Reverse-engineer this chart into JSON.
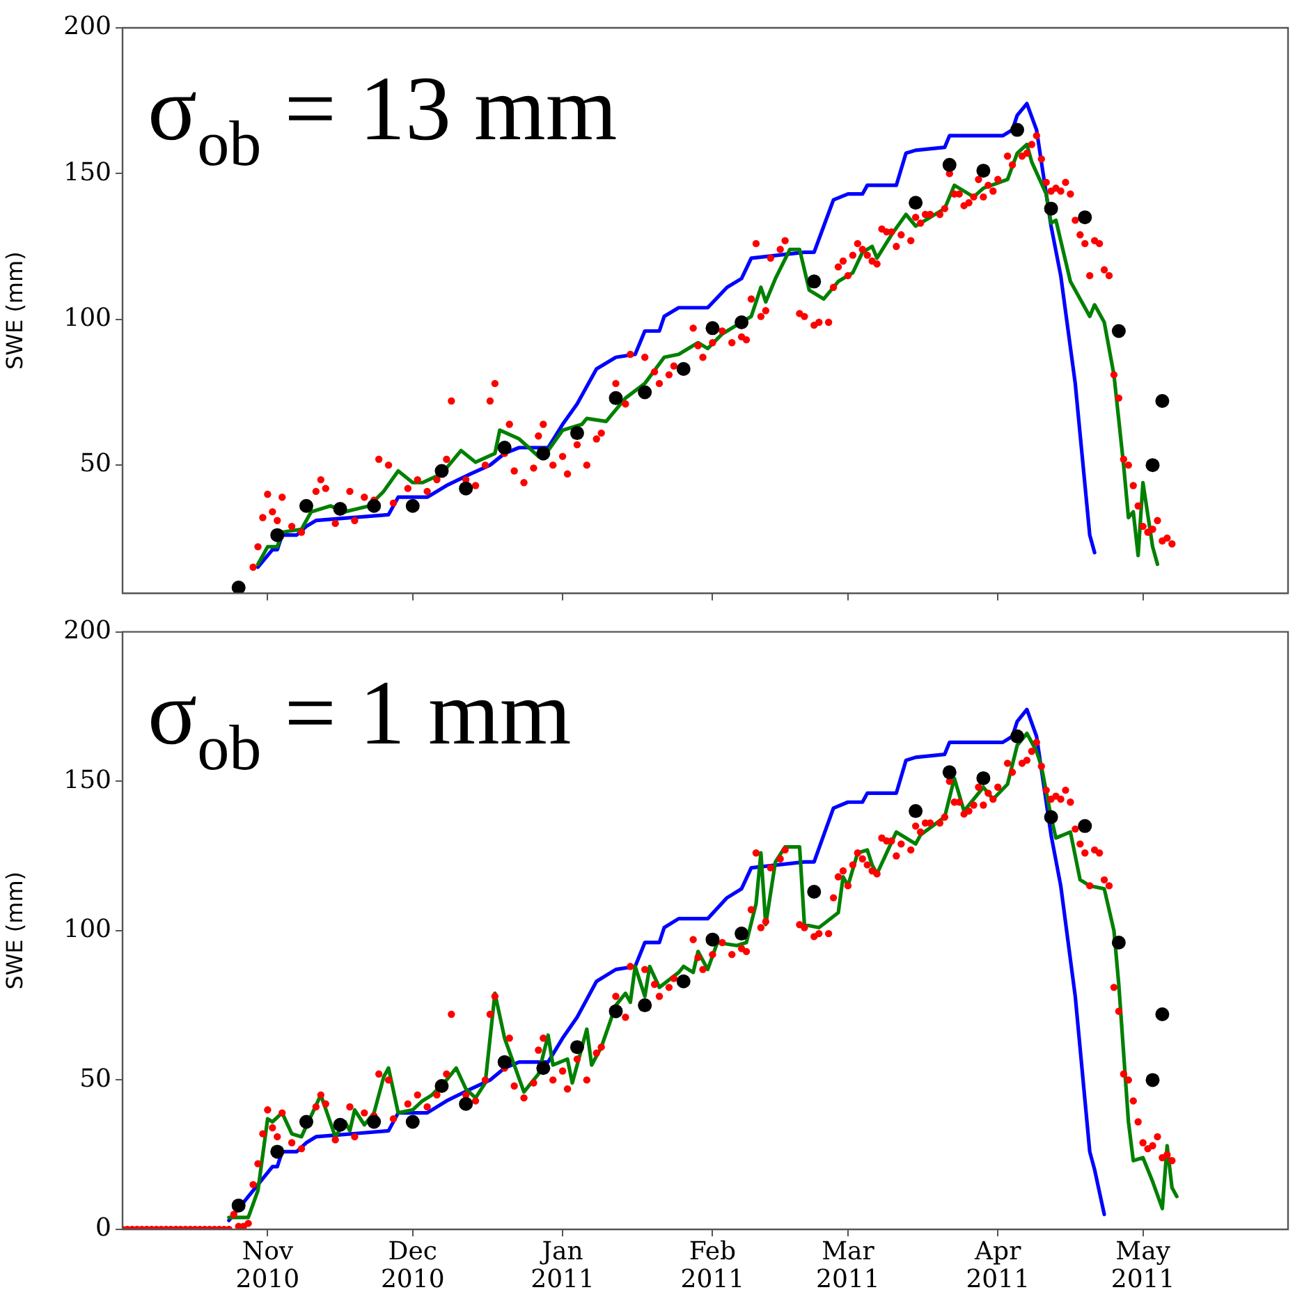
{
  "chart_data": [
    {
      "type": "line",
      "annotations": [
        "σ$_{ob}$ = 13 mm"
      ],
      "ylabel": "SWE (mm)",
      "xlim": [
        "2010-10-02",
        "2011-05-31"
      ],
      "ylim": [
        6,
        200
      ],
      "xticks": [
        {
          "value": "2010-11-01",
          "label": null
        },
        {
          "value": "2010-12-01",
          "label": null
        },
        {
          "value": "2011-01-01",
          "label": null
        },
        {
          "value": "2011-02-01",
          "label": null
        },
        {
          "value": "2011-03-01",
          "label": null
        },
        {
          "value": "2011-04-01",
          "label": null
        },
        {
          "value": "2011-05-01",
          "label": null
        }
      ],
      "yticks": [
        50,
        100,
        150,
        200
      ],
      "tick_labels": "y",
      "grid": false,
      "legend": false,
      "series": [
        {
          "type": "line",
          "color": "#0000ff",
          "x": [
            "2010-10-30",
            "2010-11-02",
            "2010-11-03",
            "2010-11-04",
            "2010-11-07",
            "2010-11-09",
            "2010-11-11",
            "2010-11-26",
            "2010-11-28",
            "2010-12-04",
            "2010-12-08",
            "2010-12-13",
            "2010-12-17",
            "2010-12-20",
            "2010-12-23",
            "2010-12-29",
            "2011-01-01",
            "2011-01-04",
            "2011-01-08",
            "2011-01-12",
            "2011-01-16",
            "2011-01-18",
            "2011-01-21",
            "2011-01-22",
            "2011-01-25",
            "2011-01-31",
            "2011-02-04",
            "2011-02-07",
            "2011-02-09",
            "2011-02-20",
            "2011-02-22",
            "2011-02-24",
            "2011-02-26",
            "2011-03-01",
            "2011-03-04",
            "2011-03-05",
            "2011-03-11",
            "2011-03-13",
            "2011-03-15",
            "2011-03-21",
            "2011-03-22",
            "2011-04-02",
            "2011-04-04",
            "2011-04-05",
            "2011-04-07",
            "2011-04-09",
            "2011-04-12",
            "2011-04-14",
            "2011-04-17",
            "2011-04-20",
            "2011-04-21"
          ],
          "values": [
            15,
            21,
            21,
            26,
            26,
            29,
            31,
            33,
            39,
            39,
            43,
            47,
            50,
            54,
            56,
            56,
            64,
            71,
            83,
            87,
            88,
            96,
            96,
            101,
            104,
            104,
            111,
            114,
            121,
            123,
            123,
            132,
            141,
            143,
            143,
            146,
            146,
            157,
            158,
            159,
            163,
            163,
            165,
            170,
            174,
            165,
            132,
            115,
            78,
            26,
            20
          ]
        },
        {
          "type": "line",
          "color": "#008000",
          "x": [
            "2010-10-30",
            "2010-11-01",
            "2010-11-03",
            "2010-11-04",
            "2010-11-08",
            "2010-11-10",
            "2010-11-14",
            "2010-11-17",
            "2010-11-22",
            "2010-11-25",
            "2010-11-28",
            "2010-12-01",
            "2010-12-03",
            "2010-12-07",
            "2010-12-11",
            "2010-12-14",
            "2010-12-18",
            "2010-12-19",
            "2010-12-23",
            "2010-12-27",
            "2010-12-29",
            "2011-01-01",
            "2011-01-05",
            "2011-01-06",
            "2011-01-10",
            "2011-01-14",
            "2011-01-18",
            "2011-01-22",
            "2011-01-25",
            "2011-01-29",
            "2011-01-31",
            "2011-02-03",
            "2011-02-05",
            "2011-02-09",
            "2011-02-11",
            "2011-02-12",
            "2011-02-14",
            "2011-02-17",
            "2011-02-19",
            "2011-02-21",
            "2011-02-24",
            "2011-02-27",
            "2011-03-02",
            "2011-03-04",
            "2011-03-06",
            "2011-03-07",
            "2011-03-10",
            "2011-03-13",
            "2011-03-15",
            "2011-03-21",
            "2011-03-23",
            "2011-03-27",
            "2011-03-29",
            "2011-04-03",
            "2011-04-05",
            "2011-04-07",
            "2011-04-08",
            "2011-04-11",
            "2011-04-12",
            "2011-04-13",
            "2011-04-16",
            "2011-04-20",
            "2011-04-21",
            "2011-04-23",
            "2011-04-25",
            "2011-04-27",
            "2011-04-28",
            "2011-04-29",
            "2011-04-30",
            "2011-05-01",
            "2011-05-03",
            "2011-05-04"
          ],
          "values": [
            16,
            22,
            22,
            27,
            28,
            34,
            36,
            34,
            36,
            41,
            48,
            44,
            44,
            47,
            55,
            51,
            54,
            62,
            59,
            53,
            55,
            62,
            64,
            66,
            65,
            73,
            78,
            87,
            88,
            92,
            90,
            95,
            97,
            101,
            111,
            106,
            114,
            124,
            124,
            110,
            107,
            113,
            116,
            123,
            125,
            121,
            129,
            136,
            132,
            138,
            146,
            142,
            145,
            148,
            157,
            160,
            154,
            143,
            133,
            134,
            113,
            101,
            105,
            99,
            81,
            50,
            32,
            34,
            19,
            44,
            22,
            16
          ]
        },
        {
          "type": "scatter",
          "marker": "circle",
          "color": "#ff0000",
          "x": [
            "2010-10-29",
            "2010-10-30",
            "2010-10-31",
            "2010-11-01",
            "2010-11-02",
            "2010-11-03",
            "2010-11-04",
            "2010-11-06",
            "2010-11-08",
            "2010-11-11",
            "2010-11-12",
            "2010-11-13",
            "2010-11-15",
            "2010-11-18",
            "2010-11-19",
            "2010-11-21",
            "2010-11-23",
            "2010-11-24",
            "2010-11-26",
            "2010-11-27",
            "2010-11-30",
            "2010-12-02",
            "2010-12-04",
            "2010-12-06",
            "2010-12-08",
            "2010-12-09",
            "2010-12-12",
            "2010-12-14",
            "2010-12-16",
            "2010-12-17",
            "2010-12-18",
            "2010-12-20",
            "2010-12-21",
            "2010-12-22",
            "2010-12-24",
            "2010-12-26",
            "2010-12-27",
            "2010-12-28",
            "2010-12-30",
            "2011-01-01",
            "2011-01-02",
            "2011-01-04",
            "2011-01-06",
            "2011-01-08",
            "2011-01-09",
            "2011-01-12",
            "2011-01-14",
            "2011-01-15",
            "2011-01-18",
            "2011-01-20",
            "2011-01-21",
            "2011-01-23",
            "2011-01-24",
            "2011-01-28",
            "2011-01-29",
            "2011-01-30",
            "2011-02-01",
            "2011-02-03",
            "2011-02-05",
            "2011-02-07",
            "2011-02-08",
            "2011-02-09",
            "2011-02-10",
            "2011-02-11",
            "2011-02-12",
            "2011-02-13",
            "2011-02-15",
            "2011-02-16",
            "2011-02-19",
            "2011-02-20",
            "2011-02-22",
            "2011-02-23",
            "2011-02-25",
            "2011-02-26",
            "2011-02-27",
            "2011-02-28",
            "2011-03-01",
            "2011-03-02",
            "2011-03-03",
            "2011-03-04",
            "2011-03-05",
            "2011-03-06",
            "2011-03-07",
            "2011-03-08",
            "2011-03-09",
            "2011-03-10",
            "2011-03-11",
            "2011-03-12",
            "2011-03-14",
            "2011-03-15",
            "2011-03-16",
            "2011-03-17",
            "2011-03-18",
            "2011-03-20",
            "2011-03-21",
            "2011-03-22",
            "2011-03-23",
            "2011-03-24",
            "2011-03-25",
            "2011-03-26",
            "2011-03-27",
            "2011-03-28",
            "2011-03-29",
            "2011-03-30",
            "2011-03-31",
            "2011-04-01",
            "2011-04-03",
            "2011-04-04",
            "2011-04-06",
            "2011-04-07",
            "2011-04-08",
            "2011-04-09",
            "2011-04-10",
            "2011-04-11",
            "2011-04-12",
            "2011-04-13",
            "2011-04-14",
            "2011-04-15",
            "2011-04-16",
            "2011-04-17",
            "2011-04-18",
            "2011-04-19",
            "2011-04-20",
            "2011-04-21",
            "2011-04-22",
            "2011-04-23",
            "2011-04-24",
            "2011-04-25",
            "2011-04-26",
            "2011-04-27",
            "2011-04-28",
            "2011-04-29",
            "2011-04-30",
            "2011-05-01",
            "2011-05-02",
            "2011-05-03",
            "2011-05-04",
            "2011-05-05",
            "2011-05-06",
            "2011-05-07"
          ],
          "values": [
            15,
            22,
            32,
            40,
            34,
            31,
            39,
            29,
            27,
            41,
            45,
            42,
            30,
            41,
            31,
            39,
            38,
            52,
            50,
            37,
            42,
            45,
            41,
            45,
            52,
            72,
            45,
            43,
            50,
            72,
            78,
            54,
            64,
            48,
            44,
            49,
            60,
            64,
            50,
            53,
            47,
            57,
            50,
            59,
            61,
            78,
            71,
            88,
            87,
            82,
            78,
            81,
            84,
            97,
            91,
            87,
            92,
            96,
            92,
            94,
            93,
            107,
            126,
            101,
            103,
            121,
            124,
            127,
            102,
            101,
            98,
            99,
            99,
            111,
            118,
            120,
            115,
            122,
            126,
            124,
            122,
            120,
            119,
            131,
            130,
            130,
            125,
            129,
            127,
            135,
            133,
            136,
            136,
            136,
            138,
            150,
            143,
            143,
            139,
            140,
            142,
            148,
            142,
            146,
            144,
            148,
            156,
            153,
            156,
            157,
            160,
            163,
            155,
            147,
            144,
            145,
            144,
            147,
            143,
            134,
            129,
            126,
            115,
            127,
            126,
            117,
            115,
            81,
            73,
            52,
            50,
            43,
            36,
            29,
            27,
            28,
            31,
            24,
            25,
            23
          ]
        },
        {
          "type": "scatter",
          "marker": "circle",
          "color": "#000000",
          "x": [
            "2010-10-26",
            "2010-11-03",
            "2010-11-09",
            "2010-11-16",
            "2010-11-23",
            "2010-12-01",
            "2010-12-07",
            "2010-12-12",
            "2010-12-20",
            "2010-12-28",
            "2011-01-04",
            "2011-01-12",
            "2011-01-18",
            "2011-01-26",
            "2011-02-01",
            "2011-02-07",
            "2011-02-22",
            "2011-03-15",
            "2011-03-22",
            "2011-03-29",
            "2011-04-05",
            "2011-04-12",
            "2011-04-19",
            "2011-04-26",
            "2011-05-03",
            "2011-05-05"
          ],
          "values": [
            8,
            26,
            36,
            35,
            36,
            36,
            48,
            42,
            56,
            54,
            61,
            73,
            75,
            83,
            97,
            99,
            113,
            140,
            153,
            151,
            165,
            138,
            135,
            96,
            50,
            72
          ]
        }
      ]
    },
    {
      "type": "line",
      "annotations": [
        "σ$_{ob}$ = 1 mm"
      ],
      "ylabel": "SWE (mm)",
      "xlim": [
        "2010-10-02",
        "2011-05-31"
      ],
      "ylim": [
        0,
        200
      ],
      "xticks": [
        {
          "value": "2010-11-01",
          "label": "Nov\n2010"
        },
        {
          "value": "2010-12-01",
          "label": "Dec\n2010"
        },
        {
          "value": "2011-01-01",
          "label": "Jan\n2011"
        },
        {
          "value": "2011-02-01",
          "label": "Feb\n2011"
        },
        {
          "value": "2011-03-01",
          "label": "Mar\n2011"
        },
        {
          "value": "2011-04-01",
          "label": "Apr\n2011"
        },
        {
          "value": "2011-05-01",
          "label": "May\n2011"
        }
      ],
      "yticks": [
        0,
        50,
        100,
        150,
        200
      ],
      "grid": false,
      "legend": false,
      "series": [
        {
          "type": "line",
          "color": "#0000ff",
          "x": [
            "2010-10-24",
            "2010-10-30",
            "2010-11-02",
            "2010-11-03",
            "2010-11-04",
            "2010-11-07",
            "2010-11-09",
            "2010-11-11",
            "2010-11-26",
            "2010-11-28",
            "2010-12-04",
            "2010-12-08",
            "2010-12-13",
            "2010-12-17",
            "2010-12-20",
            "2010-12-23",
            "2010-12-29",
            "2011-01-01",
            "2011-01-04",
            "2011-01-08",
            "2011-01-12",
            "2011-01-16",
            "2011-01-18",
            "2011-01-21",
            "2011-01-22",
            "2011-01-25",
            "2011-01-31",
            "2011-02-04",
            "2011-02-07",
            "2011-02-09",
            "2011-02-20",
            "2011-02-22",
            "2011-02-24",
            "2011-02-26",
            "2011-03-01",
            "2011-03-04",
            "2011-03-05",
            "2011-03-11",
            "2011-03-13",
            "2011-03-15",
            "2011-03-21",
            "2011-03-22",
            "2011-04-02",
            "2011-04-04",
            "2011-04-05",
            "2011-04-07",
            "2011-04-09",
            "2011-04-12",
            "2011-04-14",
            "2011-04-17",
            "2011-04-20",
            "2011-04-21",
            "2011-04-23"
          ],
          "values": [
            3,
            15,
            21,
            21,
            26,
            26,
            29,
            31,
            33,
            39,
            39,
            43,
            47,
            50,
            54,
            56,
            56,
            64,
            71,
            83,
            87,
            88,
            96,
            96,
            101,
            104,
            104,
            111,
            114,
            121,
            123,
            123,
            132,
            141,
            143,
            143,
            146,
            146,
            157,
            158,
            159,
            163,
            163,
            165,
            170,
            174,
            165,
            132,
            115,
            78,
            26,
            20,
            5
          ]
        },
        {
          "type": "line",
          "color": "#008000",
          "x": [
            "2010-10-24",
            "2010-10-28",
            "2010-10-30",
            "2010-11-01",
            "2010-11-02",
            "2010-11-04",
            "2010-11-06",
            "2010-11-08",
            "2010-11-12",
            "2010-11-15",
            "2010-11-17",
            "2010-11-18",
            "2010-11-19",
            "2010-11-21",
            "2010-11-23",
            "2010-11-25",
            "2010-11-26",
            "2010-11-28",
            "2010-12-01",
            "2010-12-03",
            "2010-12-05",
            "2010-12-08",
            "2010-12-10",
            "2010-12-12",
            "2010-12-14",
            "2010-12-16",
            "2010-12-18",
            "2010-12-20",
            "2010-12-22",
            "2010-12-24",
            "2010-12-27",
            "2010-12-29",
            "2010-12-30",
            "2011-01-02",
            "2011-01-03",
            "2011-01-06",
            "2011-01-07",
            "2011-01-09",
            "2011-01-12",
            "2011-01-14",
            "2011-01-15",
            "2011-01-16",
            "2011-01-18",
            "2011-01-19",
            "2011-01-21",
            "2011-01-25",
            "2011-01-26",
            "2011-01-28",
            "2011-01-29",
            "2011-01-31",
            "2011-02-02",
            "2011-02-06",
            "2011-02-08",
            "2011-02-10",
            "2011-02-11",
            "2011-02-12",
            "2011-02-14",
            "2011-02-16",
            "2011-02-19",
            "2011-02-20",
            "2011-02-23",
            "2011-02-27",
            "2011-02-28",
            "2011-03-01",
            "2011-03-03",
            "2011-03-05",
            "2011-03-06",
            "2011-03-07",
            "2011-03-09",
            "2011-03-11",
            "2011-03-15",
            "2011-03-16",
            "2011-03-21",
            "2011-03-23",
            "2011-03-25",
            "2011-03-29",
            "2011-03-31",
            "2011-04-03",
            "2011-04-05",
            "2011-04-07",
            "2011-04-09",
            "2011-04-10",
            "2011-04-12",
            "2011-04-13",
            "2011-04-16",
            "2011-04-18",
            "2011-04-20",
            "2011-04-23",
            "2011-04-25",
            "2011-04-26",
            "2011-04-28",
            "2011-04-29",
            "2011-05-01",
            "2011-05-03",
            "2011-05-05",
            "2011-05-06",
            "2011-05-07",
            "2011-05-08"
          ],
          "values": [
            4,
            4,
            13,
            37,
            36,
            39,
            32,
            31,
            45,
            31,
            36,
            33,
            40,
            35,
            39,
            51,
            54,
            39,
            40,
            43,
            45,
            50,
            54,
            47,
            44,
            49,
            79,
            64,
            55,
            46,
            52,
            65,
            55,
            57,
            49,
            67,
            55,
            61,
            75,
            79,
            76,
            88,
            78,
            88,
            81,
            86,
            88,
            86,
            93,
            87,
            96,
            95,
            96,
            109,
            126,
            102,
            123,
            128,
            128,
            102,
            101,
            106,
            118,
            115,
            126,
            127,
            122,
            119,
            126,
            133,
            129,
            132,
            138,
            151,
            140,
            148,
            144,
            149,
            162,
            166,
            160,
            155,
            138,
            131,
            133,
            117,
            115,
            114,
            100,
            82,
            36,
            23,
            24,
            16,
            7,
            28,
            14,
            11
          ]
        },
        {
          "type": "scatter",
          "marker": "circle",
          "color": "#ff0000",
          "x": [
            "2010-10-02",
            "2010-10-03",
            "2010-10-04",
            "2010-10-05",
            "2010-10-06",
            "2010-10-07",
            "2010-10-08",
            "2010-10-09",
            "2010-10-10",
            "2010-10-11",
            "2010-10-12",
            "2010-10-13",
            "2010-10-14",
            "2010-10-15",
            "2010-10-16",
            "2010-10-17",
            "2010-10-18",
            "2010-10-19",
            "2010-10-20",
            "2010-10-21",
            "2010-10-22",
            "2010-10-23",
            "2010-10-24",
            "2010-10-25",
            "2010-10-26",
            "2010-10-27",
            "2010-10-28",
            "2010-10-29",
            "2010-10-30",
            "2010-10-31",
            "2010-11-01",
            "2010-11-02",
            "2010-11-03",
            "2010-11-04",
            "2010-11-06",
            "2010-11-08",
            "2010-11-11",
            "2010-11-12",
            "2010-11-13",
            "2010-11-15",
            "2010-11-18",
            "2010-11-19",
            "2010-11-21",
            "2010-11-23",
            "2010-11-24",
            "2010-11-26",
            "2010-11-27",
            "2010-11-30",
            "2010-12-02",
            "2010-12-04",
            "2010-12-06",
            "2010-12-08",
            "2010-12-09",
            "2010-12-12",
            "2010-12-14",
            "2010-12-16",
            "2010-12-17",
            "2010-12-18",
            "2010-12-20",
            "2010-12-21",
            "2010-12-22",
            "2010-12-24",
            "2010-12-26",
            "2010-12-27",
            "2010-12-28",
            "2010-12-30",
            "2011-01-01",
            "2011-01-02",
            "2011-01-04",
            "2011-01-06",
            "2011-01-08",
            "2011-01-09",
            "2011-01-12",
            "2011-01-14",
            "2011-01-15",
            "2011-01-18",
            "2011-01-20",
            "2011-01-21",
            "2011-01-23",
            "2011-01-24",
            "2011-01-28",
            "2011-01-29",
            "2011-01-30",
            "2011-02-01",
            "2011-02-03",
            "2011-02-05",
            "2011-02-07",
            "2011-02-08",
            "2011-02-09",
            "2011-02-10",
            "2011-02-11",
            "2011-02-12",
            "2011-02-13",
            "2011-02-15",
            "2011-02-16",
            "2011-02-19",
            "2011-02-20",
            "2011-02-22",
            "2011-02-23",
            "2011-02-25",
            "2011-02-26",
            "2011-02-27",
            "2011-02-28",
            "2011-03-01",
            "2011-03-02",
            "2011-03-03",
            "2011-03-04",
            "2011-03-05",
            "2011-03-06",
            "2011-03-07",
            "2011-03-08",
            "2011-03-09",
            "2011-03-10",
            "2011-03-11",
            "2011-03-12",
            "2011-03-14",
            "2011-03-15",
            "2011-03-16",
            "2011-03-17",
            "2011-03-18",
            "2011-03-20",
            "2011-03-21",
            "2011-03-22",
            "2011-03-23",
            "2011-03-24",
            "2011-03-25",
            "2011-03-26",
            "2011-03-27",
            "2011-03-28",
            "2011-03-29",
            "2011-03-30",
            "2011-03-31",
            "2011-04-01",
            "2011-04-03",
            "2011-04-04",
            "2011-04-06",
            "2011-04-07",
            "2011-04-08",
            "2011-04-09",
            "2011-04-10",
            "2011-04-11",
            "2011-04-12",
            "2011-04-13",
            "2011-04-14",
            "2011-04-15",
            "2011-04-16",
            "2011-04-17",
            "2011-04-18",
            "2011-04-19",
            "2011-04-20",
            "2011-04-21",
            "2011-04-22",
            "2011-04-23",
            "2011-04-24",
            "2011-04-25",
            "2011-04-26",
            "2011-04-27",
            "2011-04-28",
            "2011-04-29",
            "2011-04-30",
            "2011-05-01",
            "2011-05-02",
            "2011-05-03",
            "2011-05-04",
            "2011-05-05",
            "2011-05-06",
            "2011-05-07"
          ],
          "values": [
            0,
            0,
            0,
            0,
            0,
            0,
            0,
            0,
            0,
            0,
            0,
            0,
            0,
            0,
            0,
            0,
            0,
            0,
            0,
            0,
            0,
            0,
            0,
            5,
            1,
            1,
            2,
            15,
            22,
            32,
            40,
            34,
            31,
            39,
            29,
            27,
            41,
            45,
            42,
            30,
            41,
            31,
            39,
            38,
            52,
            50,
            37,
            42,
            45,
            41,
            45,
            52,
            72,
            45,
            43,
            50,
            72,
            78,
            54,
            64,
            48,
            44,
            49,
            60,
            64,
            50,
            53,
            47,
            57,
            50,
            59,
            61,
            78,
            71,
            88,
            87,
            82,
            78,
            81,
            84,
            97,
            91,
            87,
            92,
            96,
            92,
            94,
            93,
            107,
            126,
            101,
            103,
            121,
            124,
            127,
            102,
            101,
            98,
            99,
            99,
            111,
            118,
            120,
            115,
            122,
            126,
            124,
            122,
            120,
            119,
            131,
            130,
            130,
            125,
            129,
            127,
            135,
            133,
            136,
            136,
            136,
            138,
            150,
            143,
            143,
            139,
            140,
            142,
            148,
            142,
            146,
            144,
            148,
            156,
            153,
            156,
            157,
            160,
            163,
            155,
            147,
            144,
            145,
            144,
            147,
            143,
            134,
            129,
            126,
            115,
            127,
            126,
            117,
            115,
            81,
            73,
            52,
            50,
            43,
            36,
            29,
            27,
            28,
            31,
            24,
            25,
            23
          ]
        },
        {
          "type": "scatter",
          "marker": "circle",
          "color": "#000000",
          "x": [
            "2010-10-26",
            "2010-11-03",
            "2010-11-09",
            "2010-11-16",
            "2010-11-23",
            "2010-12-01",
            "2010-12-07",
            "2010-12-12",
            "2010-12-20",
            "2010-12-28",
            "2011-01-04",
            "2011-01-12",
            "2011-01-18",
            "2011-01-26",
            "2011-02-01",
            "2011-02-07",
            "2011-02-22",
            "2011-03-15",
            "2011-03-22",
            "2011-03-29",
            "2011-04-05",
            "2011-04-12",
            "2011-04-19",
            "2011-04-26",
            "2011-05-03",
            "2011-05-05"
          ],
          "values": [
            8,
            26,
            36,
            35,
            36,
            36,
            48,
            42,
            56,
            54,
            61,
            73,
            75,
            83,
            97,
            99,
            113,
            140,
            153,
            151,
            165,
            138,
            135,
            96,
            50,
            72
          ]
        }
      ]
    }
  ]
}
